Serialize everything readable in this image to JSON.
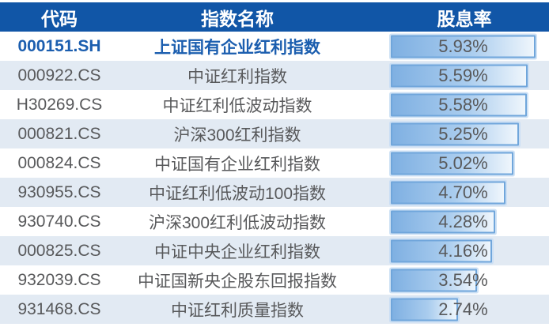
{
  "table": {
    "headers": {
      "code": "代码",
      "name": "指数名称",
      "yield": "股息率"
    }
  },
  "colors": {
    "header_bg": "#1156A7",
    "header_text": "#FFFFFF",
    "row_bg": "#FFFFFF",
    "row_alt_bg": "#E2EAF3",
    "highlight_text": "#1B5EAF",
    "body_text": "#58595B",
    "bar_border": "#70A6DB",
    "bar_fill_start": "#7FB0E2",
    "bar_fill_end": "#EFF6FC"
  },
  "chart_data": {
    "type": "table",
    "title": "",
    "columns": [
      "代码",
      "指数名称",
      "股息率"
    ],
    "bar_column": "股息率",
    "bar_scale_max": 5.93,
    "rows": [
      {
        "code": "000151.SH",
        "name": "上证国有企业红利指数",
        "value": "5.93%",
        "pct": 5.93,
        "highlight": true
      },
      {
        "code": "000922.CS",
        "name": "中证红利指数",
        "value": "5.59%",
        "pct": 5.59,
        "highlight": false
      },
      {
        "code": "H30269.CS",
        "name": "中证红利低波动指数",
        "value": "5.58%",
        "pct": 5.58,
        "highlight": false
      },
      {
        "code": "000821.CS",
        "name": "沪深300红利指数",
        "value": "5.25%",
        "pct": 5.25,
        "highlight": false
      },
      {
        "code": "000824.CS",
        "name": "中证国有企业红利指数",
        "value": "5.02%",
        "pct": 5.02,
        "highlight": false
      },
      {
        "code": "930955.CS",
        "name": "中证红利低波动100指数",
        "value": "4.70%",
        "pct": 4.7,
        "highlight": false
      },
      {
        "code": "930740.CS",
        "name": "沪深300红利低波动指数",
        "value": "4.28%",
        "pct": 4.28,
        "highlight": false
      },
      {
        "code": "000825.CS",
        "name": "中证中央企业红利指数",
        "value": "4.16%",
        "pct": 4.16,
        "highlight": false
      },
      {
        "code": "932039.CS",
        "name": "中证国新央企股东回报指数",
        "value": "3.54%",
        "pct": 3.54,
        "highlight": false
      },
      {
        "code": "931468.CS",
        "name": "中证红利质量指数",
        "value": "2.74%",
        "pct": 2.74,
        "highlight": false
      }
    ]
  }
}
